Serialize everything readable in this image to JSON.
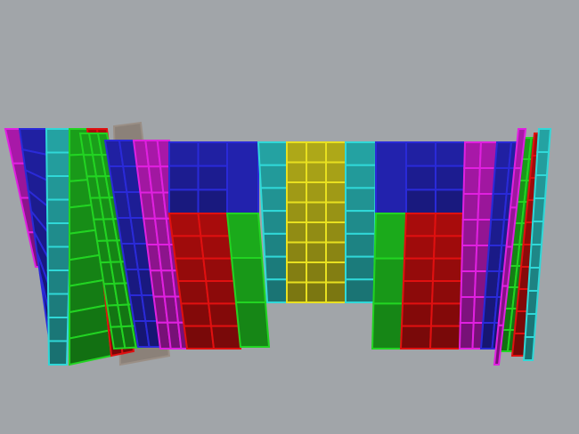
{
  "viewport": {
    "background": "#a1a5a9",
    "colors": {
      "blue": "#2a2ad8",
      "red": "#e01010",
      "green": "#22d422",
      "cyan": "#30d8d8",
      "yellow": "#e8e020",
      "magenta": "#e020e0",
      "gray": "#9a8f86"
    }
  }
}
